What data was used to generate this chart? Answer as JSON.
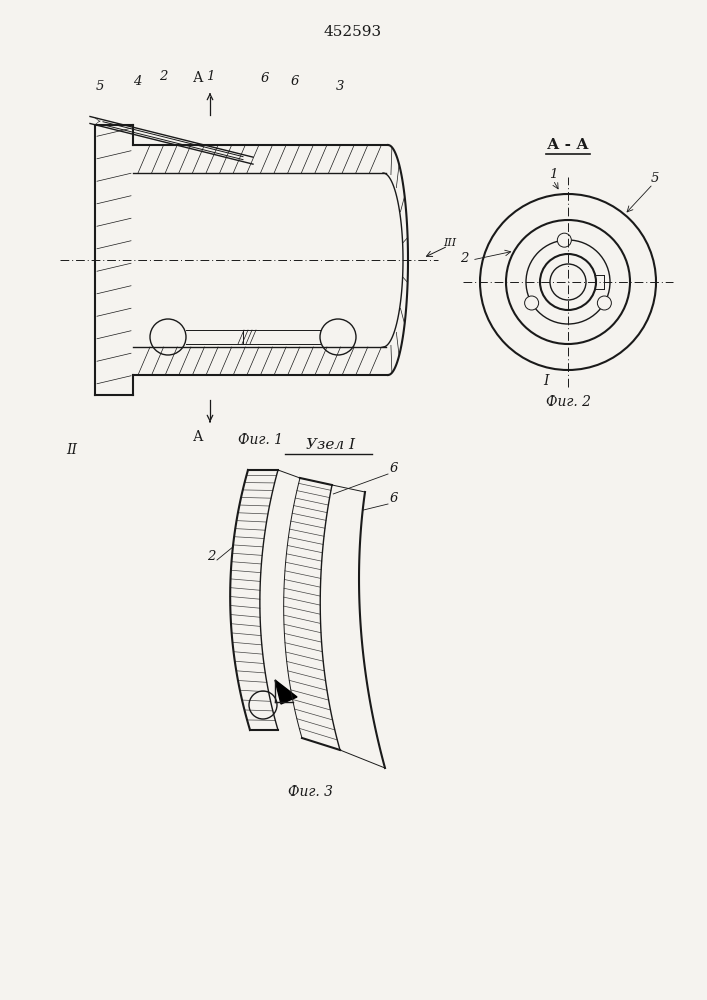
{
  "title": "452593",
  "fig1_label": "Фиг. 1",
  "fig2_label": "Фиг. 2",
  "fig3_label": "Фиг. 3",
  "uzzel_label": "Узел I",
  "aa_label": "А - А",
  "bg_color": "#f5f3ef",
  "line_color": "#1a1a1a"
}
